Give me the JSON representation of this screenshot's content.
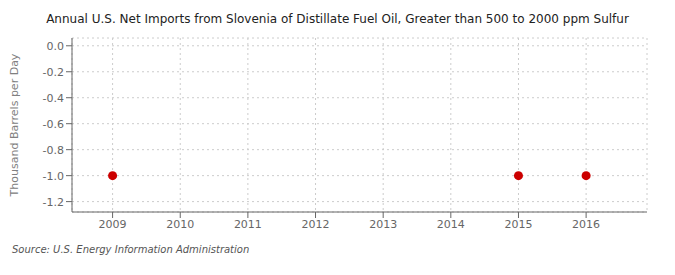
{
  "chart_data": {
    "type": "scatter",
    "title": "Annual U.S. Net Imports from Slovenia of Distillate Fuel Oil, Greater than 500 to 2000 ppm Sulfur",
    "ylabel": "Thousand Barrels per Day",
    "annotations": [
      "Source: U.S. Energy Information Administration"
    ],
    "x": [
      2009,
      2015,
      2016
    ],
    "values": [
      -1.0,
      -1.0,
      -1.0
    ],
    "color": "#cc0000",
    "xlim": [
      2008.4,
      2016.9
    ],
    "ylim": [
      -1.28,
      0.06
    ],
    "xticks": [
      2009,
      2010,
      2011,
      2012,
      2013,
      2014,
      2015,
      2016
    ],
    "yticks": [
      {
        "value": 0,
        "label": "0.0"
      },
      -0.2,
      -0.4,
      -0.6,
      -0.8,
      {
        "value": -1,
        "label": "-1.0"
      },
      -1.2
    ],
    "grid": true
  }
}
